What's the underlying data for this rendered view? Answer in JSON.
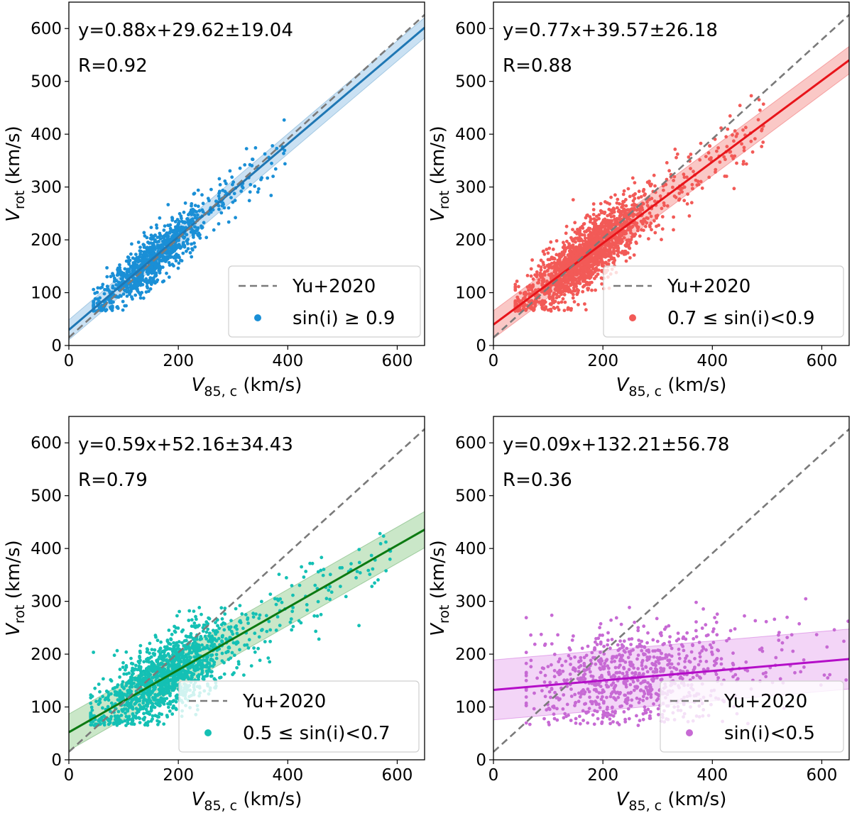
{
  "figure": {
    "reference_label": "Yu+2020",
    "reference_color": "#7a7a7a",
    "x_ticks": [
      0,
      200,
      400,
      600
    ],
    "y_ticks": [
      0,
      100,
      200,
      300,
      400,
      500,
      600
    ]
  },
  "chart_data": [
    {
      "type": "scatter",
      "xlabel": "V85,c (km/s)",
      "xlabel_main": "V",
      "xlabel_sub": "85, c",
      "xlabel_unit": " (km/s)",
      "ylabel": "Vrot (km/s)",
      "ylabel_main": "V",
      "ylabel_sub": "rot",
      "ylabel_unit": " (km/s)",
      "xlim": [
        0,
        650
      ],
      "ylim": [
        0,
        650
      ],
      "equation": "y=0.88x+29.62±19.04",
      "r_text": "R=0.92",
      "fit": {
        "slope": 0.88,
        "intercept": 29.62,
        "scatter": 19.04,
        "line_color": "#1f77b4",
        "band_color": "#9ec8ea"
      },
      "reference": {
        "slope": 0.94,
        "intercept": 15
      },
      "point_color": "#1a8fd6",
      "series_label": "sin(i) ≥ 0.9",
      "legend_position": "lower-right",
      "point_cloud": {
        "count": 1000,
        "x_range": [
          45,
          400
        ],
        "x_center": 155,
        "x_spread": 55,
        "y_noise": 24,
        "seed": 11
      }
    },
    {
      "type": "scatter",
      "xlabel": "V85,c (km/s)",
      "xlabel_main": "V",
      "xlabel_sub": "85, c",
      "xlabel_unit": " (km/s)",
      "ylabel": "Vrot (km/s)",
      "ylabel_main": "V",
      "ylabel_sub": "rot",
      "ylabel_unit": " (km/s)",
      "xlim": [
        0,
        650
      ],
      "ylim": [
        0,
        650
      ],
      "equation": "y=0.77x+39.57±26.18",
      "r_text": "R=0.88",
      "fit": {
        "slope": 0.77,
        "intercept": 39.57,
        "scatter": 26.18,
        "line_color": "#e8141a",
        "band_color": "#f59a98"
      },
      "reference": {
        "slope": 0.94,
        "intercept": 15
      },
      "point_color": "#f25a57",
      "series_label": "0.7 ≤ sin(i)<0.9",
      "legend_position": "lower-right",
      "point_cloud": {
        "count": 1900,
        "x_range": [
          40,
          495
        ],
        "x_center": 170,
        "x_spread": 60,
        "y_noise": 30,
        "seed": 23
      }
    },
    {
      "type": "scatter",
      "xlabel": "V85,c (km/s)",
      "xlabel_main": "V",
      "xlabel_sub": "85, c",
      "xlabel_unit": " (km/s)",
      "ylabel": "Vrot (km/s)",
      "ylabel_main": "V",
      "ylabel_sub": "rot",
      "ylabel_unit": " (km/s)",
      "xlim": [
        0,
        650
      ],
      "ylim": [
        0,
        650
      ],
      "equation": "y=0.59x+52.16±34.43",
      "r_text": "R=0.79",
      "fit": {
        "slope": 0.59,
        "intercept": 52.16,
        "scatter": 34.43,
        "line_color": "#0d7a12",
        "band_color": "#9fd39b"
      },
      "reference": {
        "slope": 0.94,
        "intercept": 15
      },
      "point_color": "#14c0b4",
      "series_label": "0.5 ≤ sin(i)<0.7",
      "legend_position": "lower-right",
      "point_cloud": {
        "count": 1500,
        "x_range": [
          40,
          590
        ],
        "x_center": 180,
        "x_spread": 70,
        "y_noise": 36,
        "seed": 37
      }
    },
    {
      "type": "scatter",
      "xlabel": "V85,c (km/s)",
      "xlabel_main": "V",
      "xlabel_sub": "85, c",
      "xlabel_unit": " (km/s)",
      "ylabel": "Vrot (km/s)",
      "ylabel_main": "V",
      "ylabel_sub": "rot",
      "ylabel_unit": " (km/s)",
      "xlim": [
        0,
        650
      ],
      "ylim": [
        0,
        650
      ],
      "equation": "y=0.09x+132.21±56.78",
      "r_text": "R=0.36",
      "fit": {
        "slope": 0.09,
        "intercept": 132.21,
        "scatter": 56.78,
        "line_color": "#b40ec8",
        "band_color": "#eab3f0"
      },
      "reference": {
        "slope": 0.94,
        "intercept": 15
      },
      "point_color": "#c76ad4",
      "series_label": "sin(i)<0.5",
      "legend_position": "lower-right",
      "point_cloud": {
        "count": 850,
        "x_range": [
          60,
          650
        ],
        "x_center": 260,
        "x_spread": 110,
        "y_noise": 48,
        "seed": 53
      }
    }
  ]
}
